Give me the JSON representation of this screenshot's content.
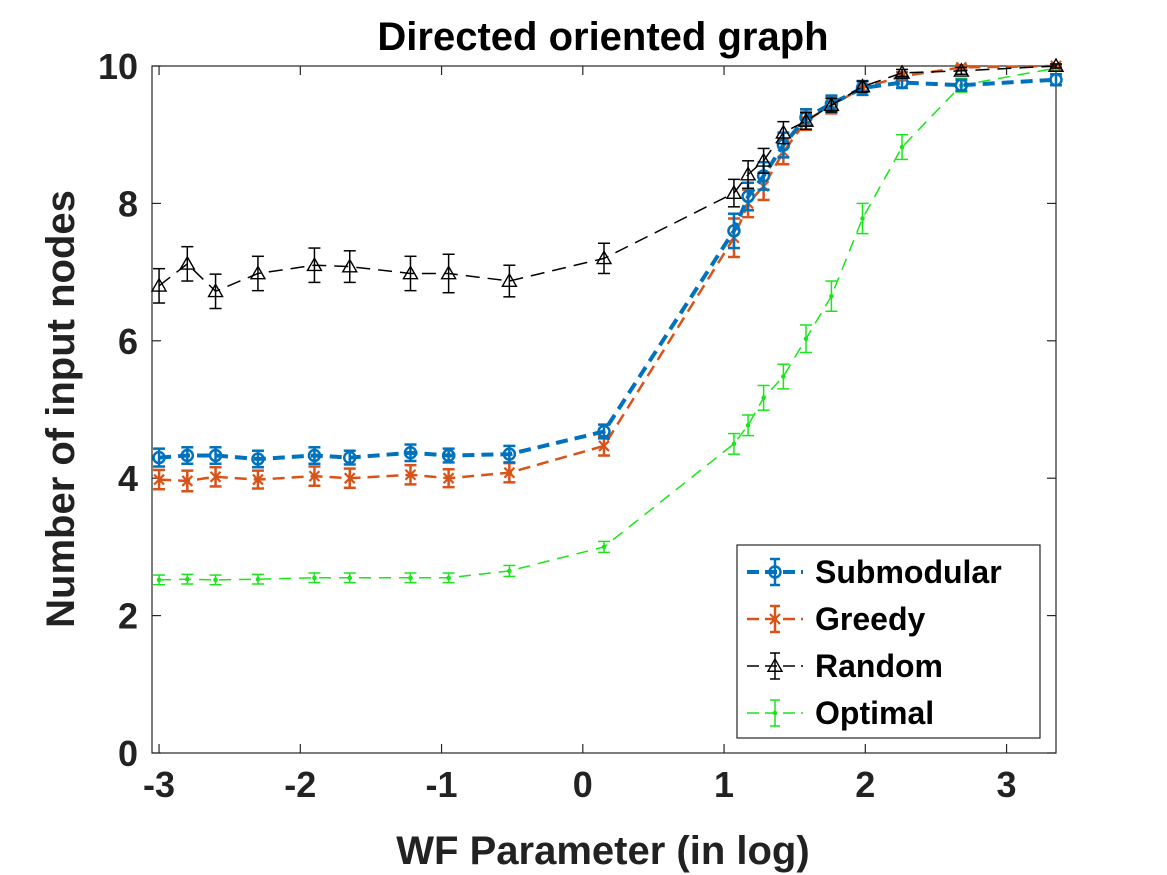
{
  "chart_data": {
    "type": "line",
    "title": "Directed oriented graph",
    "xlabel": "WF Parameter (in log)",
    "ylabel": "Number of input nodes",
    "xlim": [
      -3.05,
      3.35
    ],
    "ylim": [
      0,
      10
    ],
    "xticks": [
      -3,
      -2,
      -1,
      0,
      1,
      2,
      3
    ],
    "xtick_labels": [
      "-3",
      "-2",
      "-1",
      "0",
      "1",
      "2",
      "3"
    ],
    "yticks": [
      0,
      2,
      4,
      6,
      8,
      10
    ],
    "ytick_labels": [
      "0",
      "2",
      "4",
      "6",
      "8",
      "10"
    ],
    "grid": false,
    "legend_position": "bottom-right",
    "series": [
      {
        "name": "Submodular",
        "color": "#0072BD",
        "line_style": "dashed",
        "marker": "circle",
        "x": [
          -3.0,
          -2.8,
          -2.6,
          -2.3,
          -1.9,
          -1.65,
          -1.22,
          -0.95,
          -0.52,
          0.15,
          1.07,
          1.17,
          1.28,
          1.42,
          1.58,
          1.76,
          1.98,
          2.26,
          2.68,
          3.35
        ],
        "y": [
          4.3,
          4.33,
          4.33,
          4.28,
          4.33,
          4.3,
          4.37,
          4.33,
          4.35,
          4.68,
          7.6,
          8.1,
          8.4,
          8.85,
          9.25,
          9.45,
          9.68,
          9.76,
          9.72,
          9.8
        ],
        "err": [
          0.13,
          0.12,
          0.12,
          0.12,
          0.12,
          0.1,
          0.12,
          0.1,
          0.12,
          0.1,
          0.25,
          0.2,
          0.2,
          0.18,
          0.12,
          0.12,
          0.1,
          0.08,
          0.08,
          0.08
        ]
      },
      {
        "name": "Greedy",
        "color": "#D95319",
        "line_style": "dashed",
        "marker": "x",
        "x": [
          -3.0,
          -2.8,
          -2.6,
          -2.3,
          -1.9,
          -1.65,
          -1.22,
          -0.95,
          -0.52,
          0.15,
          1.07,
          1.17,
          1.28,
          1.42,
          1.58,
          1.76,
          1.98,
          2.26,
          2.68,
          3.35
        ],
        "y": [
          3.98,
          3.96,
          4.02,
          3.98,
          4.03,
          4.0,
          4.05,
          4.0,
          4.08,
          4.47,
          7.5,
          8.0,
          8.25,
          8.75,
          9.2,
          9.43,
          9.68,
          9.85,
          9.98,
          10.0
        ],
        "err": [
          0.14,
          0.15,
          0.14,
          0.13,
          0.14,
          0.14,
          0.14,
          0.13,
          0.14,
          0.14,
          0.28,
          0.2,
          0.2,
          0.18,
          0.13,
          0.12,
          0.1,
          0.06,
          0.03,
          0.02
        ]
      },
      {
        "name": "Random",
        "color": "#000000",
        "line_style": "dashed",
        "marker": "triangle",
        "x": [
          -3.0,
          -2.8,
          -2.6,
          -2.3,
          -1.9,
          -1.65,
          -1.22,
          -0.95,
          -0.52,
          0.15,
          1.07,
          1.17,
          1.28,
          1.42,
          1.58,
          1.76,
          1.98,
          2.26,
          2.68,
          3.35
        ],
        "y": [
          6.8,
          7.12,
          6.72,
          6.98,
          7.1,
          7.08,
          6.98,
          6.98,
          6.87,
          7.2,
          8.15,
          8.42,
          8.62,
          9.03,
          9.2,
          9.43,
          9.7,
          9.9,
          9.93,
          10.0
        ],
        "err": [
          0.25,
          0.25,
          0.25,
          0.25,
          0.25,
          0.23,
          0.25,
          0.28,
          0.23,
          0.22,
          0.2,
          0.2,
          0.18,
          0.16,
          0.12,
          0.1,
          0.08,
          0.05,
          0.05,
          0.03
        ]
      },
      {
        "name": "Optimal",
        "color": "#19E619",
        "line_style": "dashed",
        "marker": "dot",
        "x": [
          -3.0,
          -2.8,
          -2.6,
          -2.3,
          -1.9,
          -1.65,
          -1.22,
          -0.95,
          -0.52,
          0.15,
          1.07,
          1.17,
          1.28,
          1.42,
          1.58,
          1.76,
          1.98,
          2.26,
          2.68,
          3.35
        ],
        "y": [
          2.52,
          2.53,
          2.52,
          2.53,
          2.55,
          2.55,
          2.55,
          2.55,
          2.65,
          3.0,
          4.5,
          4.77,
          5.17,
          5.48,
          6.03,
          6.65,
          7.78,
          8.82,
          9.72,
          9.97
        ],
        "err": [
          0.07,
          0.07,
          0.07,
          0.07,
          0.07,
          0.07,
          0.07,
          0.07,
          0.08,
          0.08,
          0.15,
          0.15,
          0.18,
          0.18,
          0.2,
          0.22,
          0.22,
          0.18,
          0.1,
          0.04
        ]
      }
    ]
  }
}
